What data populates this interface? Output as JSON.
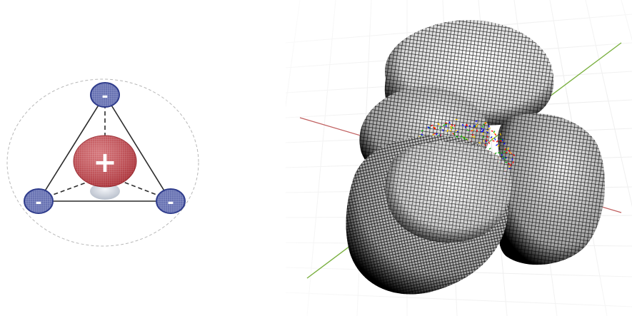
{
  "left_diagram": {
    "central_charge": {
      "symbol": "+",
      "color": "#c9353c"
    },
    "outer_charges": [
      {
        "symbol": "-",
        "position": "top"
      },
      {
        "symbol": "-",
        "position": "bottom-left"
      },
      {
        "symbol": "-",
        "position": "bottom-right"
      }
    ],
    "outer_charge_color": "#2f3c8c",
    "lobe_color": "#d0d6e0"
  },
  "right_view": {
    "lobe_count": 4,
    "wireframe_color": "#000000",
    "axis_colors": {
      "x": "#c06060",
      "y": "#7ab040"
    },
    "interior_colors": [
      "#ff0000",
      "#00b000",
      "#0000ff",
      "#ffd000"
    ]
  }
}
